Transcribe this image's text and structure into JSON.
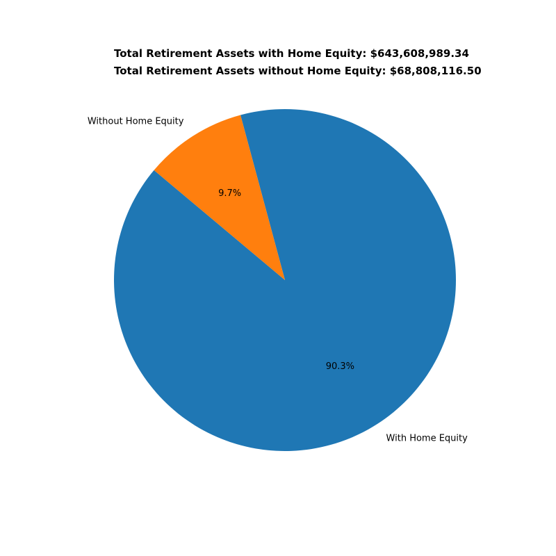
{
  "chart_data": {
    "type": "pie",
    "annotations": [
      "Total Retirement Assets with Home Equity: $643,608,989.34",
      "Total Retirement Assets without Home Equity: $68,808,116.50"
    ],
    "slices": [
      {
        "label": "With Home Equity",
        "value": 90.3,
        "pct_label": "90.3%",
        "color": "#1f77b4"
      },
      {
        "label": "Without Home Equity",
        "value": 9.7,
        "pct_label": "9.7%",
        "color": "#ff7f0e"
      }
    ],
    "start_angle_deg": 140,
    "direction": "counterclockwise",
    "legend": "none"
  }
}
